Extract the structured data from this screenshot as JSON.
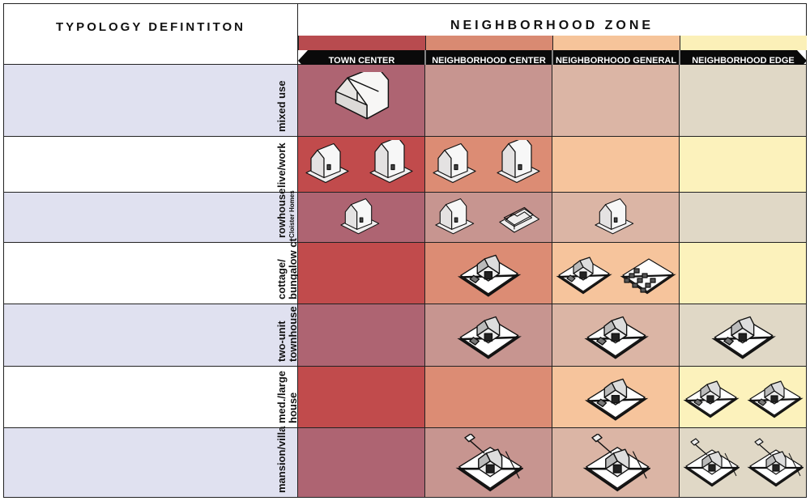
{
  "header": {
    "left_title": "TYPOLOGY DEFINTITON",
    "right_title": "NEIGHBORHOOD ZONE"
  },
  "zones": [
    {
      "label": "TOWN CENTER",
      "strip_color": "#b84b4f"
    },
    {
      "label": "NEIGHBORHOOD CENTER",
      "strip_color": "#d98a72"
    },
    {
      "label": "NEIGHBORHOOD GENERAL",
      "strip_color": "#f6c49a"
    },
    {
      "label": "NEIGHBORHOOD EDGE",
      "strip_color": "#fbf0b8"
    }
  ],
  "rows": [
    {
      "label": "mixed use",
      "sublabel": "",
      "cell_colors": [
        "#ae6472",
        "#c79590",
        "#dbb5a5",
        "#e0d8c6"
      ],
      "buildings": [
        [
          "warehouse"
        ],
        [],
        [],
        []
      ]
    },
    {
      "label": "live/work",
      "sublabel": "",
      "cell_colors": [
        "#c14b4c",
        "#dc8c74",
        "#f6c49c",
        "#fcf2bc"
      ],
      "buildings": [
        [
          "house",
          "house-tall"
        ],
        [
          "house",
          "house-tall"
        ],
        [],
        []
      ]
    },
    {
      "label": "rowhouse",
      "sublabel": "Cloister Homes",
      "cell_colors": [
        "#ae6472",
        "#c79590",
        "#dbb5a5",
        "#e0d8c6"
      ],
      "buildings": [
        [
          "house"
        ],
        [
          "house",
          "ring"
        ],
        [
          "house"
        ],
        []
      ]
    },
    {
      "label": "cottage/",
      "sublabel": "bungalow ct",
      "cell_colors": [
        "#c14b4c",
        "#dc8c74",
        "#f6c49c",
        "#fcf2bc"
      ],
      "buildings": [
        [],
        [
          "plot"
        ],
        [
          "plot",
          "plot-grid"
        ],
        []
      ]
    },
    {
      "label": "two-unit",
      "sublabel": "townhouse",
      "cell_colors": [
        "#ae6472",
        "#c79590",
        "#dbb5a5",
        "#e0d8c6"
      ],
      "buildings": [
        [],
        [
          "plot"
        ],
        [
          "plot"
        ],
        [
          "plot"
        ]
      ]
    },
    {
      "label": "med./large",
      "sublabel": "house",
      "cell_colors": [
        "#c14b4c",
        "#dc8c74",
        "#f6c49c",
        "#fcf2bc"
      ],
      "buildings": [
        [],
        [],
        [
          "plot"
        ],
        [
          "plot",
          "plot"
        ]
      ]
    },
    {
      "label": "mansion/villa",
      "sublabel": "",
      "cell_colors": [
        "#ae6472",
        "#c79590",
        "#dbb5a5",
        "#e0d8c6"
      ],
      "buildings": [
        [],
        [
          "villa"
        ],
        [
          "villa"
        ],
        [
          "villa",
          "villa"
        ]
      ]
    }
  ],
  "colors": {
    "left_row_tint": "#e0e1f0",
    "left_row_white": "#ffffff",
    "grid_line": "#222222",
    "arrow_bar": "#0a0a0a"
  }
}
